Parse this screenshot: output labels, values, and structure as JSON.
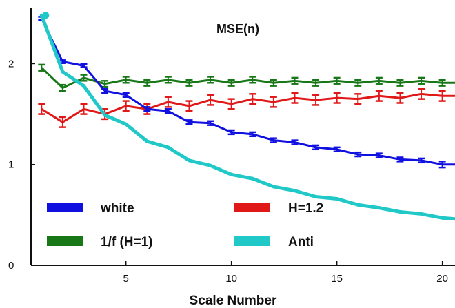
{
  "chart_data": {
    "type": "line",
    "title": "MSE(n)",
    "xlabel": "Scale Number",
    "ylabel": "",
    "xlim": [
      0.5,
      20.6
    ],
    "ylim": [
      0,
      2.55
    ],
    "xticks": [
      5,
      10,
      15,
      20
    ],
    "yticks": [
      0,
      1,
      2
    ],
    "grid": false,
    "legend_position": "bottom",
    "x": [
      1,
      2,
      3,
      4,
      5,
      6,
      7,
      8,
      9,
      10,
      11,
      12,
      13,
      14,
      15,
      16,
      17,
      18,
      19,
      20,
      20.6
    ],
    "series": [
      {
        "name": "white",
        "color": "#1010e0",
        "error_bars": true,
        "values": [
          2.45,
          2.02,
          1.98,
          1.73,
          1.69,
          1.55,
          1.53,
          1.42,
          1.41,
          1.32,
          1.3,
          1.24,
          1.22,
          1.17,
          1.15,
          1.1,
          1.09,
          1.05,
          1.04,
          1.0,
          1.0
        ],
        "errors": [
          0.015,
          0.015,
          0.015,
          0.02,
          0.02,
          0.02,
          0.02,
          0.02,
          0.02,
          0.02,
          0.02,
          0.02,
          0.02,
          0.02,
          0.02,
          0.02,
          0.02,
          0.02,
          0.02,
          0.03,
          0.03
        ]
      },
      {
        "name": "H=1.2",
        "color": "#e01818",
        "error_bars": true,
        "values": [
          1.55,
          1.42,
          1.55,
          1.5,
          1.58,
          1.55,
          1.62,
          1.58,
          1.64,
          1.6,
          1.65,
          1.62,
          1.66,
          1.64,
          1.66,
          1.65,
          1.68,
          1.66,
          1.7,
          1.68,
          1.68
        ],
        "errors": [
          0.05,
          0.05,
          0.05,
          0.05,
          0.05,
          0.05,
          0.05,
          0.05,
          0.05,
          0.05,
          0.05,
          0.05,
          0.05,
          0.05,
          0.05,
          0.05,
          0.05,
          0.05,
          0.05,
          0.05,
          0.05
        ]
      },
      {
        "name": "1/f (H=1)",
        "color": "#187818",
        "error_bars": true,
        "values": [
          1.96,
          1.76,
          1.86,
          1.8,
          1.84,
          1.81,
          1.84,
          1.81,
          1.84,
          1.81,
          1.84,
          1.81,
          1.83,
          1.81,
          1.83,
          1.81,
          1.83,
          1.81,
          1.83,
          1.81,
          1.81
        ],
        "errors": [
          0.03,
          0.03,
          0.03,
          0.03,
          0.03,
          0.03,
          0.03,
          0.03,
          0.03,
          0.03,
          0.03,
          0.03,
          0.03,
          0.03,
          0.03,
          0.03,
          0.03,
          0.03,
          0.03,
          0.03,
          0.03
        ]
      },
      {
        "name": "Anti",
        "color": "#20c8c8",
        "error_bars": false,
        "values": [
          2.48,
          1.92,
          1.78,
          1.49,
          1.4,
          1.23,
          1.17,
          1.04,
          0.99,
          0.9,
          0.86,
          0.78,
          0.74,
          0.68,
          0.66,
          0.6,
          0.57,
          0.53,
          0.51,
          0.47,
          0.46
        ]
      }
    ],
    "legend": [
      {
        "series": "white",
        "color": "#1010e0"
      },
      {
        "series": "H=1.2",
        "color": "#e01818"
      },
      {
        "series": "1/f (H=1)",
        "color": "#187818"
      },
      {
        "series": "Anti",
        "color": "#20c8c8"
      }
    ]
  }
}
